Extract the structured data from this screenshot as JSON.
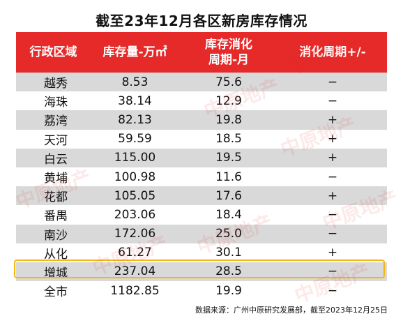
{
  "title": "截至23年12月各区新房库存情况",
  "headers": {
    "district": "行政区域",
    "inventory": "库存量-万㎡",
    "cycle_line1": "库存消化",
    "cycle_line2": "周期-月",
    "change": "消化周期+/-"
  },
  "rows": [
    {
      "district": "越秀",
      "inventory": "8.53",
      "cycle": "75.6",
      "change": "−"
    },
    {
      "district": "海珠",
      "inventory": "38.14",
      "cycle": "12.9",
      "change": "−"
    },
    {
      "district": "荔湾",
      "inventory": "82.13",
      "cycle": "19.8",
      "change": "+"
    },
    {
      "district": "天河",
      "inventory": "59.59",
      "cycle": "18.5",
      "change": "+"
    },
    {
      "district": "白云",
      "inventory": "115.00",
      "cycle": "19.5",
      "change": "+"
    },
    {
      "district": "黄埔",
      "inventory": "100.98",
      "cycle": "11.6",
      "change": "−"
    },
    {
      "district": "花都",
      "inventory": "105.05",
      "cycle": "17.6",
      "change": "+"
    },
    {
      "district": "番禺",
      "inventory": "203.06",
      "cycle": "18.4",
      "change": "−"
    },
    {
      "district": "南沙",
      "inventory": "172.06",
      "cycle": "25.0",
      "change": "−"
    },
    {
      "district": "从化",
      "inventory": "61.27",
      "cycle": "30.1",
      "change": "+"
    },
    {
      "district": "增城",
      "inventory": "237.04",
      "cycle": "28.5",
      "change": "−"
    },
    {
      "district": "全市",
      "inventory": "1182.85",
      "cycle": "19.9",
      "change": "−"
    }
  ],
  "source": "数据来源：广州中原研究发展部，截至2023年12月25日",
  "watermark": "中原地产",
  "colors": {
    "header_bg": "#e62a2a",
    "highlight_border": "#f4b614",
    "stripe": "#d9d9d9"
  }
}
